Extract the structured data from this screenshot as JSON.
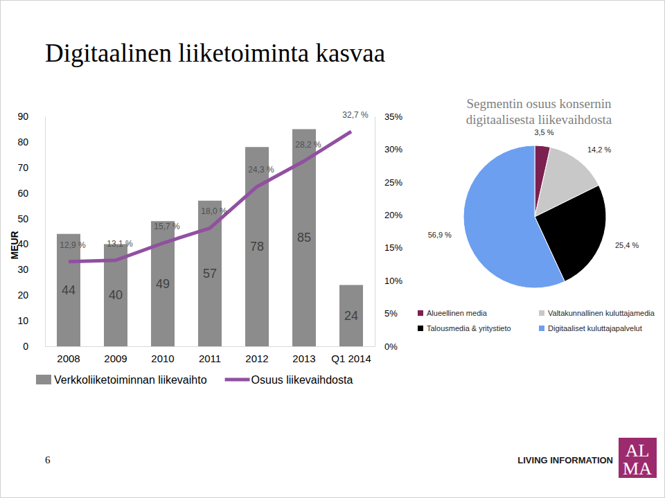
{
  "title": "Digitaalinen liiketoiminta kasvaa",
  "chart_data": [
    {
      "type": "bar",
      "categories": [
        "2008",
        "2009",
        "2010",
        "2011",
        "2012",
        "2013",
        "Q1 2014"
      ],
      "ylabel": "MEUR",
      "ylim": [
        0,
        90
      ],
      "yticks": [
        0,
        10,
        20,
        30,
        40,
        50,
        60,
        70,
        80,
        90
      ],
      "y2lim": [
        0,
        35
      ],
      "y2ticks": [
        {
          "value": 0,
          "label": "0%"
        },
        {
          "value": 5,
          "label": "5%"
        },
        {
          "value": 10,
          "label": "10%"
        },
        {
          "value": 15,
          "label": "15%"
        },
        {
          "value": 20,
          "label": "20%"
        },
        {
          "value": 25,
          "label": "25%"
        },
        {
          "value": 30,
          "label": "30%"
        },
        {
          "value": 35,
          "label": "35%"
        }
      ],
      "legend": "bottom",
      "series": [
        {
          "name": "Verkkoliiketoiminnan liikevaihto",
          "type": "bar",
          "color": "#8c8c8c",
          "values": [
            44,
            40,
            49,
            57,
            78,
            85,
            24
          ],
          "data_labels": true
        },
        {
          "name": "Osuus liikevaihdosta",
          "type": "line",
          "axis": "y2",
          "color": "#9150a0",
          "values": [
            12.9,
            13.1,
            15.7,
            18.0,
            24.3,
            28.2,
            32.7
          ],
          "value_labels": [
            "12,9 %",
            "13,1 %",
            "15,7 %",
            "18,0 %",
            "24,3 %",
            "28,2 %",
            "32,7 %"
          ],
          "data_labels": true
        }
      ]
    },
    {
      "type": "pie",
      "title": "Segmentin osuus konsernin\ndigitaalisesta liikevaihdosta",
      "categories": [
        "Alueellinen media",
        "Valtakunnallinen kuluttajamedia",
        "Talousmedia & yritystieto",
        "Digitaaliset kuluttajapalvelut"
      ],
      "values": [
        3.5,
        14.2,
        25.4,
        56.9
      ],
      "value_labels": [
        "3,5 %",
        "14,2 %",
        "25,4 %",
        "56,9 %"
      ],
      "colors": [
        "#7b2050",
        "#c8c8c8",
        "#000000",
        "#6c9ff0"
      ],
      "data_labels": true,
      "legend": "bottom"
    }
  ],
  "footer": {
    "page_number": "6",
    "tagline": "LIVING INFORMATION",
    "logo": [
      "AL",
      "MA"
    ]
  }
}
